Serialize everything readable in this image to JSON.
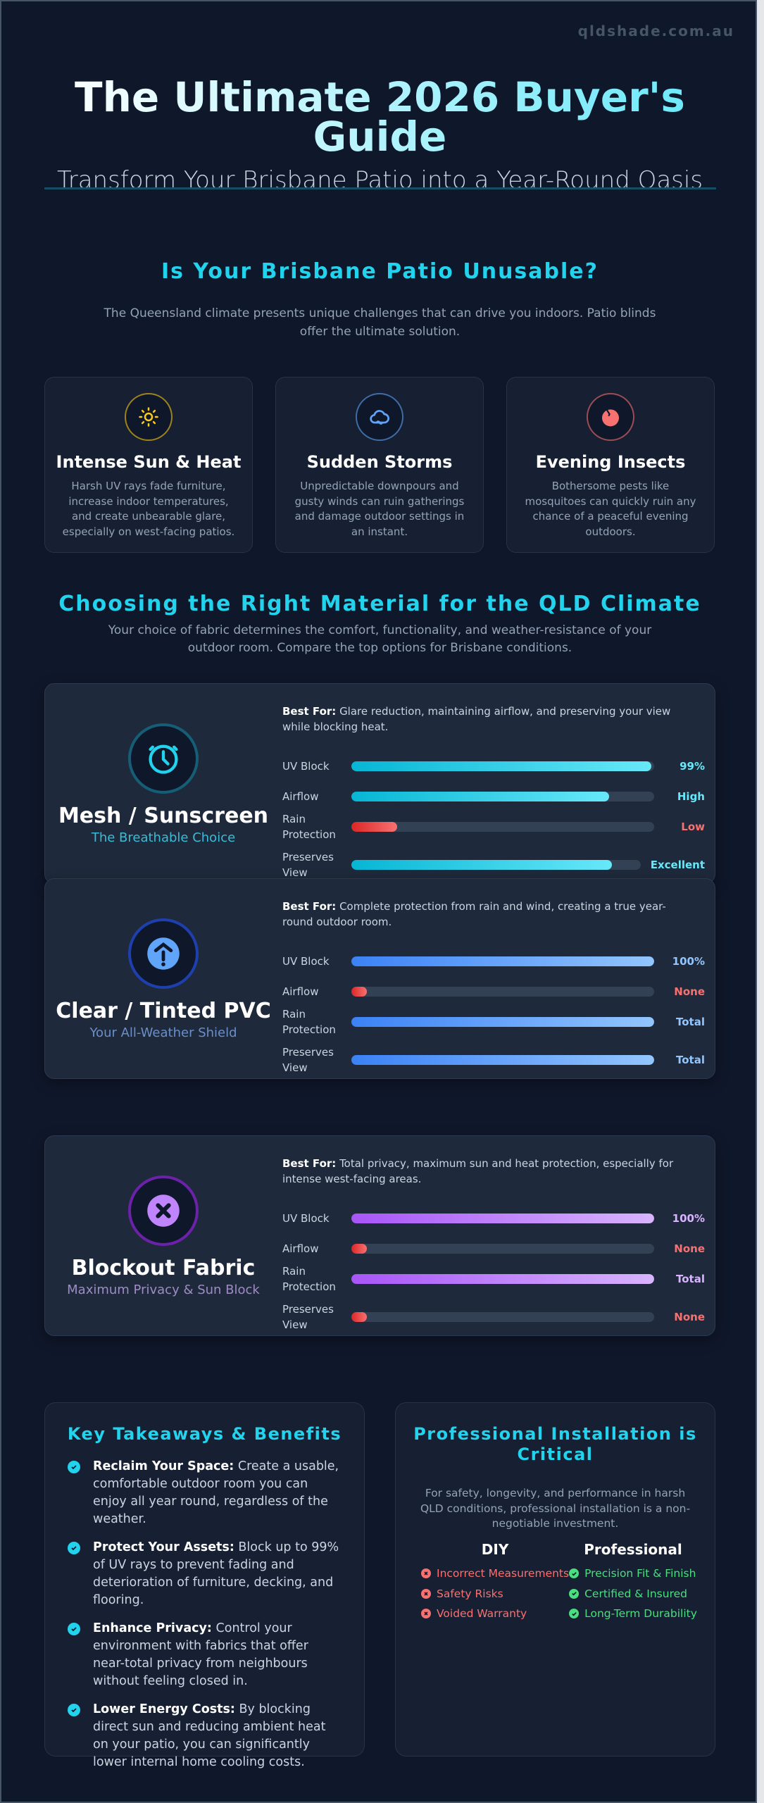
{
  "header": {
    "domain": "qldshade.com.au",
    "title": "The Ultimate 2026 Buyer's Guide",
    "subtitle": "Transform Your Brisbane Patio into a Year-Round Oasis"
  },
  "problem": {
    "heading": "Is Your Brisbane Patio Unusable?",
    "intro": "The Queensland climate presents unique challenges that can drive you indoors. Patio blinds offer the ultimate solution.",
    "cards": [
      {
        "icon": "sun-icon",
        "color": "#facc15",
        "title": "Intense Sun & Heat",
        "text": "Harsh UV rays fade furniture, increase indoor temperatures, and create unbearable glare, especially on west-facing patios."
      },
      {
        "icon": "storm-cloud-icon",
        "color": "#60a5fa",
        "title": "Sudden Storms",
        "text": "Unpredictable downpours and gusty winds can ruin gatherings and damage outdoor settings in an instant."
      },
      {
        "icon": "insect-icon",
        "color": "#f87171",
        "title": "Evening Insects",
        "text": "Bothersome pests like mosquitoes can quickly ruin any chance of a peaceful evening outdoors."
      }
    ]
  },
  "materials": {
    "heading": "Choosing the Right Material for the QLD Climate",
    "intro": "Your choice of fabric determines the comfort, functionality, and weather-resistance of your outdoor room. Compare the top options for Brisbane conditions.",
    "best_for_label": "Best For:",
    "cards": [
      {
        "icon": "mesh-sunscreen-icon",
        "accent": "#22d3ee",
        "ring": "#155e75",
        "gradient": [
          "#06b6d4",
          "#67e8f9"
        ],
        "name": "Mesh / Sunscreen",
        "tagline": "The Breathable Choice",
        "tag_color": "#38bdd8",
        "best_for": "Glare reduction, maintaining airflow, and preserving your view while blocking heat.",
        "ratings": [
          {
            "label": "UV Block",
            "value": "99%",
            "level": 99,
            "status": "good"
          },
          {
            "label": "Airflow",
            "value": "High",
            "level": 85,
            "status": "good"
          },
          {
            "label": "Rain Protection",
            "value": "Low",
            "level": 15,
            "status": "bad"
          },
          {
            "label": "Preserves View",
            "value": "Excellent",
            "level": 90,
            "status": "good"
          }
        ]
      },
      {
        "icon": "pvc-shield-icon",
        "accent": "#60a5fa",
        "ring": "#1e40af",
        "gradient": [
          "#3b82f6",
          "#93c5fd"
        ],
        "name": "Clear / Tinted PVC",
        "tagline": "Your All-Weather Shield",
        "tag_color": "#6b8fc9",
        "best_for": "Complete protection from rain and wind, creating a true year-round outdoor room.",
        "ratings": [
          {
            "label": "UV Block",
            "value": "100%",
            "level": 100,
            "status": "good"
          },
          {
            "label": "Airflow",
            "value": "None",
            "level": 5,
            "status": "bad"
          },
          {
            "label": "Rain Protection",
            "value": "Total",
            "level": 100,
            "status": "good"
          },
          {
            "label": "Preserves View",
            "value": "Total",
            "level": 100,
            "status": "good"
          }
        ]
      },
      {
        "icon": "blockout-x-icon",
        "accent": "#c084fc",
        "ring": "#6b21a8",
        "gradient": [
          "#a855f7",
          "#d8b4fe"
        ],
        "name": "Blockout Fabric",
        "tagline": "Maximum Privacy & Sun Block",
        "tag_color": "#9f8cc4",
        "best_for": "Total privacy, maximum sun and heat protection, especially for intense west-facing areas.",
        "ratings": [
          {
            "label": "UV Block",
            "value": "100%",
            "level": 100,
            "status": "good"
          },
          {
            "label": "Airflow",
            "value": "None",
            "level": 5,
            "status": "bad"
          },
          {
            "label": "Rain Protection",
            "value": "Total",
            "level": 100,
            "status": "good"
          },
          {
            "label": "Preserves View",
            "value": "None",
            "level": 5,
            "status": "bad"
          }
        ]
      }
    ]
  },
  "colors": {
    "bad_gradient": [
      "#dc2626",
      "#f87171"
    ],
    "bad_text": "#f87171",
    "check": "#22d3ee",
    "diy": "#f87171",
    "pro": "#4ade80"
  },
  "takeaways": {
    "heading": "Key Takeaways & Benefits",
    "items": [
      {
        "title": "Reclaim Your Space:",
        "text": "Create a usable, comfortable outdoor room you can enjoy all year round, regardless of the weather."
      },
      {
        "title": "Protect Your Assets:",
        "text": "Block up to 99% of UV rays to prevent fading and deterioration of furniture, decking, and flooring."
      },
      {
        "title": "Enhance Privacy:",
        "text": "Control your environment with fabrics that offer near-total privacy from neighbours without feeling closed in."
      },
      {
        "title": "Lower Energy Costs:",
        "text": "By blocking direct sun and reducing ambient heat on your patio, you can significantly lower internal home cooling costs."
      }
    ]
  },
  "installation": {
    "heading": "Professional Installation is Critical",
    "text": "For safety, longevity, and performance in harsh QLD conditions, professional installation is a non-negotiable investment.",
    "diy": {
      "heading": "DIY",
      "items": [
        "Incorrect Measurements",
        "Safety Risks",
        "Voided Warranty"
      ]
    },
    "pro": {
      "heading": "Professional",
      "items": [
        "Precision Fit & Finish",
        "Certified & Insured",
        "Long-Term Durability"
      ]
    }
  }
}
